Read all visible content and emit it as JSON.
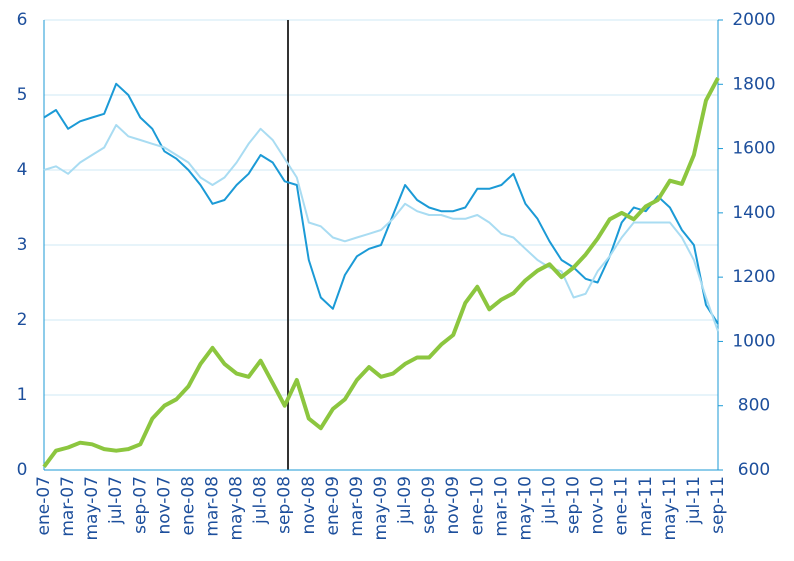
{
  "chart_data": {
    "type": "line",
    "categories": [
      "ene-07",
      null,
      "mar-07",
      null,
      "may-07",
      null,
      "jul-07",
      null,
      "sep-07",
      null,
      "nov-07",
      null,
      "ene-08",
      null,
      "mar-08",
      null,
      "may-08",
      null,
      "jul-08",
      null,
      "sep-08",
      null,
      "nov-08",
      null,
      "ene-09",
      null,
      "mar-09",
      null,
      "may-09",
      null,
      "jul-09",
      null,
      "sep-09",
      null,
      "nov-09",
      null,
      "ene-10",
      null,
      "mar-10",
      null,
      "may-10",
      null,
      "jul-10",
      null,
      "sep-10",
      null,
      "nov-10",
      null,
      "ene-11",
      null,
      "mar-11",
      null,
      "may-11",
      null,
      "jul-11",
      null,
      "sep-11"
    ],
    "series": [
      {
        "color": "#1b9ad6",
        "axis": "y",
        "values": [
          4.7,
          4.8,
          4.55,
          4.65,
          4.7,
          4.75,
          5.15,
          5.0,
          4.7,
          4.55,
          4.25,
          4.15,
          4.0,
          3.8,
          3.55,
          3.6,
          3.8,
          3.95,
          4.2,
          4.1,
          3.85,
          3.8,
          2.8,
          2.3,
          2.15,
          2.6,
          2.85,
          2.95,
          3.0,
          3.4,
          3.8,
          3.6,
          3.5,
          3.45,
          3.45,
          3.5,
          3.75,
          3.75,
          3.8,
          3.95,
          3.55,
          3.35,
          3.05,
          2.8,
          2.7,
          2.55,
          2.5,
          2.85,
          3.3,
          3.5,
          3.45,
          3.65,
          3.5,
          3.2,
          3.0,
          2.2,
          1.95
        ]
      },
      {
        "color": "#a9dcf2",
        "axis": "y",
        "values": [
          4.0,
          4.05,
          3.95,
          4.1,
          4.2,
          4.3,
          4.6,
          4.45,
          4.4,
          4.35,
          4.3,
          4.2,
          4.1,
          3.9,
          3.8,
          3.9,
          4.1,
          4.35,
          4.55,
          4.4,
          4.15,
          3.9,
          3.3,
          3.25,
          3.1,
          3.05,
          3.1,
          3.15,
          3.2,
          3.35,
          3.55,
          3.45,
          3.4,
          3.4,
          3.35,
          3.35,
          3.4,
          3.3,
          3.15,
          3.1,
          2.95,
          2.8,
          2.7,
          2.65,
          2.3,
          2.35,
          2.65,
          2.85,
          3.1,
          3.3,
          3.3,
          3.3,
          3.3,
          3.1,
          2.8,
          2.3,
          1.85
        ]
      },
      {
        "color": "#8cc63f",
        "axis": "y2",
        "values": [
          610,
          660,
          670,
          685,
          680,
          665,
          660,
          665,
          680,
          760,
          800,
          820,
          860,
          930,
          980,
          930,
          900,
          890,
          940,
          870,
          800,
          880,
          760,
          730,
          790,
          820,
          880,
          920,
          890,
          900,
          930,
          950,
          950,
          990,
          1020,
          1120,
          1170,
          1100,
          1130,
          1150,
          1190,
          1220,
          1240,
          1200,
          1230,
          1270,
          1320,
          1380,
          1400,
          1380,
          1420,
          1440,
          1500,
          1490,
          1580,
          1750,
          1820
        ]
      }
    ],
    "ylim": [
      0,
      6
    ],
    "yticks": [
      0,
      1,
      2,
      3,
      4,
      5,
      6
    ],
    "y2lim": [
      600,
      2000
    ],
    "y2ticks": [
      600,
      800,
      1000,
      1200,
      1400,
      1600,
      1800,
      2000
    ],
    "grid": true
  }
}
